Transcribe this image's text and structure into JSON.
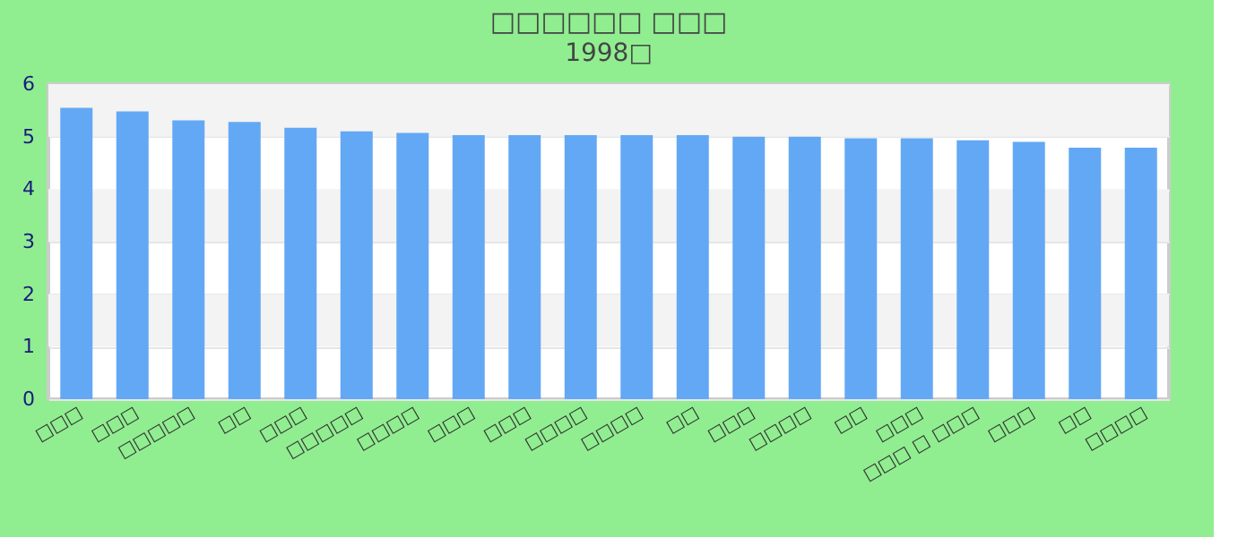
{
  "chart_data": {
    "type": "bar",
    "title": "□□□□□□ □□□",
    "subtitle": "1998□",
    "categories": [
      "□□□",
      "□□□",
      "□□□□□",
      "□□",
      "□□□",
      "□□□□□",
      "□□□□",
      "□□□",
      "□□□",
      "□□□□",
      "□□□□",
      "□□",
      "□□□",
      "□□□□",
      "□□",
      "□□□",
      "□□□ □ □□□",
      "□□□",
      "□□",
      "□□□□"
    ],
    "values": [
      5.55,
      5.48,
      5.31,
      5.28,
      5.17,
      5.1,
      5.07,
      5.03,
      5.03,
      5.03,
      5.03,
      5.03,
      5.0,
      5.0,
      4.97,
      4.97,
      4.93,
      4.9,
      4.79,
      4.79
    ],
    "color": "#63a8f4",
    "ylim": [
      0,
      6
    ],
    "yticks": [
      0,
      1,
      2,
      3,
      4,
      5,
      6
    ],
    "grid": "y"
  }
}
